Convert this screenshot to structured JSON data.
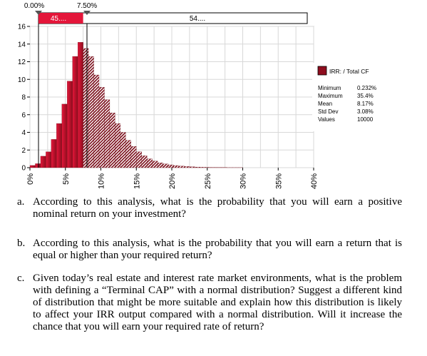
{
  "chart_data": {
    "type": "bar",
    "title": "",
    "xlabel": "",
    "ylabel": "",
    "xlim": [
      0,
      0.4
    ],
    "ylim": [
      0,
      16
    ],
    "bin_width": 0.0075,
    "x_ticks": [
      "0%",
      "5%",
      "10%",
      "15%",
      "20%",
      "25%",
      "30%",
      "35%",
      "40%"
    ],
    "x_tick_values": [
      0,
      0.05,
      0.1,
      0.15,
      0.2,
      0.25,
      0.3,
      0.35,
      0.4
    ],
    "y_ticks": [
      "0",
      "2",
      "4",
      "6",
      "8",
      "10",
      "12",
      "14",
      "16"
    ],
    "y_tick_values": [
      0,
      2,
      4,
      6,
      8,
      10,
      12,
      14,
      16
    ],
    "bins": [
      {
        "x": 0.0,
        "y": 0.25
      },
      {
        "x": 0.0075,
        "y": 0.45
      },
      {
        "x": 0.015,
        "y": 1.3
      },
      {
        "x": 0.0225,
        "y": 1.8
      },
      {
        "x": 0.03,
        "y": 3.2
      },
      {
        "x": 0.0375,
        "y": 5.0
      },
      {
        "x": 0.045,
        "y": 7.2
      },
      {
        "x": 0.0525,
        "y": 9.8
      },
      {
        "x": 0.06,
        "y": 12.6
      },
      {
        "x": 0.0675,
        "y": 14.2
      },
      {
        "x": 0.075,
        "y": 13.5
      },
      {
        "x": 0.0825,
        "y": 12.6
      },
      {
        "x": 0.09,
        "y": 10.5
      },
      {
        "x": 0.0975,
        "y": 9.1
      },
      {
        "x": 0.105,
        "y": 7.7
      },
      {
        "x": 0.1125,
        "y": 6.2
      },
      {
        "x": 0.12,
        "y": 5.0
      },
      {
        "x": 0.1275,
        "y": 4.0
      },
      {
        "x": 0.135,
        "y": 3.1
      },
      {
        "x": 0.1425,
        "y": 2.4
      },
      {
        "x": 0.15,
        "y": 1.8
      },
      {
        "x": 0.1575,
        "y": 1.35
      },
      {
        "x": 0.165,
        "y": 1.0
      },
      {
        "x": 0.1725,
        "y": 0.75
      },
      {
        "x": 0.18,
        "y": 0.55
      },
      {
        "x": 0.1875,
        "y": 0.42
      },
      {
        "x": 0.195,
        "y": 0.32
      },
      {
        "x": 0.2025,
        "y": 0.24
      },
      {
        "x": 0.21,
        "y": 0.18
      },
      {
        "x": 0.2175,
        "y": 0.13
      },
      {
        "x": 0.225,
        "y": 0.1
      },
      {
        "x": 0.2325,
        "y": 0.07
      },
      {
        "x": 0.24,
        "y": 0.05
      },
      {
        "x": 0.2475,
        "y": 0.04
      },
      {
        "x": 0.255,
        "y": 0.03
      },
      {
        "x": 0.2625,
        "y": 0.02
      },
      {
        "x": 0.27,
        "y": 0.02
      },
      {
        "x": 0.2775,
        "y": 0.01
      },
      {
        "x": 0.285,
        "y": 0.01
      },
      {
        "x": 0.2925,
        "y": 0.01
      }
    ],
    "delimiters": {
      "left_label": "0.00%",
      "right_label": "7.50%",
      "left_value": 0.0,
      "right_value": 0.075,
      "left_pct_label": "45....",
      "right_pct_label": "54...."
    },
    "legend": {
      "placement": "right",
      "series_label": "IRR: / Total CF",
      "stats": [
        {
          "label": "Minimum",
          "value": "0.232%"
        },
        {
          "label": "Maximum",
          "value": "35.4%"
        },
        {
          "label": "Mean",
          "value": "8.17%"
        },
        {
          "label": "Std Dev",
          "value": "3.08%"
        },
        {
          "label": "Values",
          "value": "10000"
        }
      ]
    },
    "grid": true,
    "colors": {
      "bar_light": "#e4163a",
      "bar_dark": "#6e0a14",
      "hatch_bg": "#ffffff",
      "delimiter_band": "#e4163a",
      "grid": "#d8d8d8"
    }
  },
  "questions": {
    "a": {
      "letter": "a.",
      "text": "According to this analysis, what is the probability that you will earn a positive nominal return on your investment?"
    },
    "b": {
      "letter": "b.",
      "text": "According to this analysis, what is the probability that you will earn a return that is equal or higher than your required return?"
    },
    "c": {
      "letter": "c.",
      "text": "Given today’s real estate and interest rate market environments, what is the problem with defining a “Terminal CAP” with a normal distribution? Suggest a different kind of distribution that might be more suitable and explain how this distribution is likely to affect your IRR output compared with a normal distribution. Will it increase the chance that you will earn your required rate of return?"
    }
  }
}
